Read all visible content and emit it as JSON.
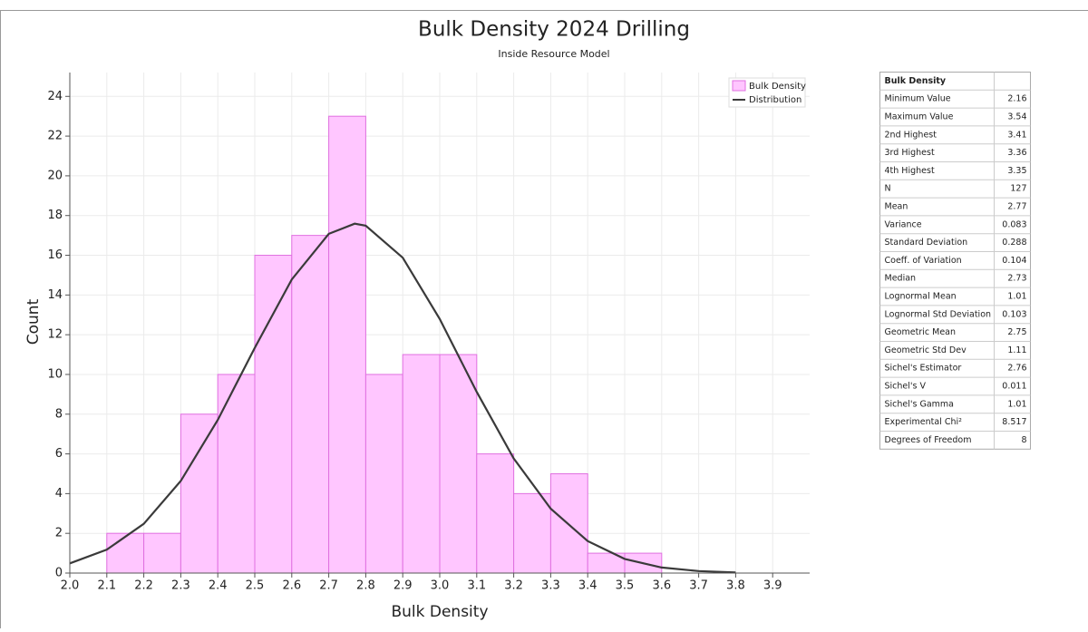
{
  "chart_data": {
    "type": "histogram",
    "title": "Bulk Density 2024 Drilling",
    "subtitle": "Inside Resource Model",
    "x_label": "Bulk Density",
    "y_label": "Count",
    "histogram_name": "Bulk Density",
    "bar_color": "#ffc6ff",
    "bar_edge": "#e070e0",
    "bins": [
      2.1,
      2.2,
      2.3,
      2.4,
      2.5,
      2.6,
      2.7,
      2.8,
      2.9,
      3.0,
      3.1,
      3.2,
      3.3,
      3.4,
      3.5,
      3.6
    ],
    "counts": [
      2,
      2,
      8,
      10,
      16,
      17,
      23,
      10,
      11,
      11,
      6,
      4,
      5,
      1,
      1
    ],
    "distribution": {
      "name": "Distribution",
      "color": "#3a3a3a",
      "x": [
        2.0,
        2.1,
        2.2,
        2.3,
        2.4,
        2.5,
        2.6,
        2.7,
        2.77,
        2.8,
        2.9,
        3.0,
        3.1,
        3.2,
        3.3,
        3.4,
        3.5,
        3.6,
        3.7,
        3.8
      ],
      "values": [
        0.49,
        1.18,
        2.48,
        4.64,
        7.71,
        11.34,
        14.78,
        17.08,
        17.59,
        17.49,
        15.88,
        12.79,
        9.12,
        5.77,
        3.24,
        1.61,
        0.71,
        0.28,
        0.1,
        0.03
      ]
    },
    "xlim": [
      2.0,
      4.0
    ],
    "xticks": [
      {
        "value": 2.0,
        "label": "2.0"
      },
      2.1,
      2.2,
      2.3,
      2.4,
      2.5,
      2.6,
      2.7,
      2.8,
      2.9,
      {
        "value": 3.0,
        "label": "3.0"
      },
      3.1,
      3.2,
      3.3,
      3.4,
      3.5,
      3.6,
      3.7,
      3.8,
      3.9
    ],
    "ylim": [
      0,
      25.2
    ],
    "yticks": [
      0,
      2,
      4,
      6,
      8,
      10,
      12,
      14,
      16,
      18,
      20,
      22,
      24
    ],
    "grid": true,
    "legend": "top-right"
  },
  "stats_table": {
    "header": "Bulk Density",
    "rows": [
      [
        "Minimum Value",
        "2.16"
      ],
      [
        "Maximum Value",
        "3.54"
      ],
      [
        "2nd Highest",
        "3.41"
      ],
      [
        "3rd Highest",
        "3.36"
      ],
      [
        "4th Highest",
        "3.35"
      ],
      [
        "N",
        "127"
      ],
      [
        "Mean",
        "2.77"
      ],
      [
        "Variance",
        "0.083"
      ],
      [
        "Standard Deviation",
        "0.288"
      ],
      [
        "Coeff. of Variation",
        "0.104"
      ],
      [
        "Median",
        "2.73"
      ],
      [
        "Lognormal Mean",
        "1.01"
      ],
      [
        "Lognormal Std Deviation",
        "0.103"
      ],
      [
        "Geometric Mean",
        "2.75"
      ],
      [
        "Geometric Std Dev",
        "1.11"
      ],
      [
        "Sichel's Estimator",
        "2.76"
      ],
      [
        "Sichel's V",
        "0.011"
      ],
      [
        "Sichel's Gamma",
        "1.01"
      ],
      [
        "Experimental Chi²",
        "8.517"
      ],
      [
        "Degrees of Freedom",
        "8"
      ]
    ]
  }
}
